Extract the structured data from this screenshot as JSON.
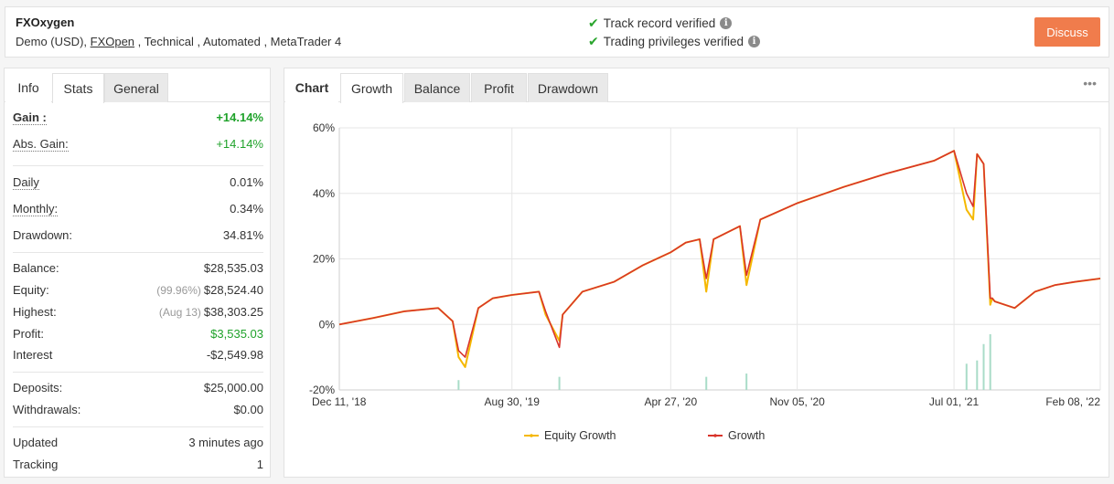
{
  "header": {
    "system_name": "FXOxygen",
    "meta_prefix": "Demo (USD), ",
    "broker": "FXOpen",
    "meta_suffix": " , Technical , Automated , MetaTrader 4",
    "verified_track": "Track record verified",
    "verified_trading": "Trading privileges verified",
    "discuss_label": "Discuss"
  },
  "left_tabs": [
    "Info",
    "Stats",
    "General"
  ],
  "stats": {
    "gain": {
      "label": "Gain :",
      "value": "+14.14%"
    },
    "abs_gain": {
      "label": "Abs. Gain:",
      "value": "+14.14%"
    },
    "daily": {
      "label": "Daily",
      "value": "0.01%"
    },
    "monthly": {
      "label": "Monthly:",
      "value": "0.34%"
    },
    "drawdown": {
      "label": "Drawdown:",
      "value": "34.81%"
    },
    "balance": {
      "label": "Balance:",
      "value": "$28,535.03"
    },
    "equity": {
      "label": "Equity:",
      "note": "(99.96%)",
      "value": "$28,524.40"
    },
    "highest": {
      "label": "Highest:",
      "note": "(Aug 13)",
      "value": "$38,303.25"
    },
    "profit": {
      "label": "Profit:",
      "value": "$3,535.03"
    },
    "interest": {
      "label": "Interest",
      "value": "-$2,549.98"
    },
    "deposits": {
      "label": "Deposits:",
      "value": "$25,000.00"
    },
    "withdrawals": {
      "label": "Withdrawals:",
      "value": "$0.00"
    },
    "updated": {
      "label": "Updated",
      "value": "3 minutes ago"
    },
    "tracking": {
      "label": "Tracking",
      "value": "1"
    }
  },
  "chart_tabs": [
    "Chart",
    "Growth",
    "Balance",
    "Profit",
    "Drawdown"
  ],
  "chart_menu": "•••",
  "colors": {
    "growth": "#d9342b",
    "equity": "#f5b800",
    "volume": "#a9dcc8",
    "discuss": "#f07c4c",
    "positive": "#1fa22a"
  },
  "chart_data": {
    "type": "line",
    "yticks": [
      "60%",
      "40%",
      "20%",
      "0%",
      "-20%"
    ],
    "ylim": [
      -20,
      60
    ],
    "xticks": [
      "Dec 11, '18",
      "Aug 30, '19",
      "Apr 27, '20",
      "Nov 05, '20",
      "Jul 01, '21",
      "Feb 08, '22"
    ],
    "xlim": [
      "Dec 11, '18",
      "Feb 08, '22"
    ],
    "legend_position": "bottom",
    "series": [
      {
        "name": "Equity Growth",
        "x": [
          "Dec 11, '18",
          "Feb 01, '19",
          "Mar 20, '19",
          "May 10, '19",
          "Jun 01, '19",
          "Jun 10, '19",
          "Jun 20, '19",
          "Jul 10, '19",
          "Aug 01, '19",
          "Aug 30, '19",
          "Oct 10, '19",
          "Oct 20, '19",
          "Nov 10, '19",
          "Nov 15, '19",
          "Dec 15, '19",
          "Feb 01, '20",
          "Mar 15, '20",
          "Apr 27, '20",
          "May 20, '20",
          "Jun 10, '20",
          "Jun 20, '20",
          "Jul 01, '20",
          "Aug 10, '20",
          "Aug 20, '20",
          "Sep 10, '20",
          "Nov 05, '20",
          "Jan 15, '21",
          "Mar 20, '21",
          "Jun 01, '21",
          "Jul 01, '21",
          "Jul 20, '21",
          "Jul 30, '21",
          "Aug 05, '21",
          "Aug 15, '21",
          "Aug 25, '21",
          "Aug 28, '21",
          "Sep 01, '21",
          "Oct 01, '21",
          "Nov 01, '21",
          "Dec 01, '21",
          "Jan 01, '22",
          "Feb 08, '22"
        ],
        "values": [
          0,
          2,
          4,
          5,
          1,
          -10,
          -13,
          5,
          8,
          9,
          10,
          3,
          -5,
          3,
          10,
          13,
          18,
          22,
          25,
          26,
          10,
          26,
          30,
          12,
          32,
          37,
          42,
          46,
          50,
          53,
          35,
          32,
          52,
          49,
          6,
          8,
          7,
          5,
          10,
          12,
          13,
          14
        ]
      },
      {
        "name": "Growth",
        "x": [
          "Dec 11, '18",
          "Feb 01, '19",
          "Mar 20, '19",
          "May 10, '19",
          "Jun 01, '19",
          "Jun 10, '19",
          "Jun 20, '19",
          "Jul 10, '19",
          "Aug 01, '19",
          "Aug 30, '19",
          "Oct 10, '19",
          "Oct 20, '19",
          "Nov 10, '19",
          "Nov 15, '19",
          "Dec 15, '19",
          "Feb 01, '20",
          "Mar 15, '20",
          "Apr 27, '20",
          "May 20, '20",
          "Jun 10, '20",
          "Jun 20, '20",
          "Jul 01, '20",
          "Aug 10, '20",
          "Aug 20, '20",
          "Sep 10, '20",
          "Nov 05, '20",
          "Jan 15, '21",
          "Mar 20, '21",
          "Jun 01, '21",
          "Jul 01, '21",
          "Jul 20, '21",
          "Jul 30, '21",
          "Aug 05, '21",
          "Aug 15, '21",
          "Aug 25, '21",
          "Aug 28, '21",
          "Sep 01, '21",
          "Oct 01, '21",
          "Nov 01, '21",
          "Dec 01, '21",
          "Jan 01, '22",
          "Feb 08, '22"
        ],
        "values": [
          0,
          2,
          4,
          5,
          1,
          -8,
          -10,
          5,
          8,
          9,
          10,
          4,
          -7,
          3,
          10,
          13,
          18,
          22,
          25,
          26,
          14,
          26,
          30,
          15,
          32,
          37,
          42,
          46,
          50,
          53,
          40,
          36,
          52,
          49,
          8,
          8,
          7,
          5,
          10,
          12,
          13,
          14
        ]
      }
    ],
    "volume": {
      "x": [
        "Jun 10, '19",
        "Nov 10, '19",
        "Jun 20, '20",
        "Aug 20, '20",
        "Jul 20, '21",
        "Aug 05, '21",
        "Aug 15, '21",
        "Aug 25, '21"
      ],
      "values": [
        3,
        4,
        4,
        5,
        8,
        9,
        14,
        17
      ]
    }
  }
}
